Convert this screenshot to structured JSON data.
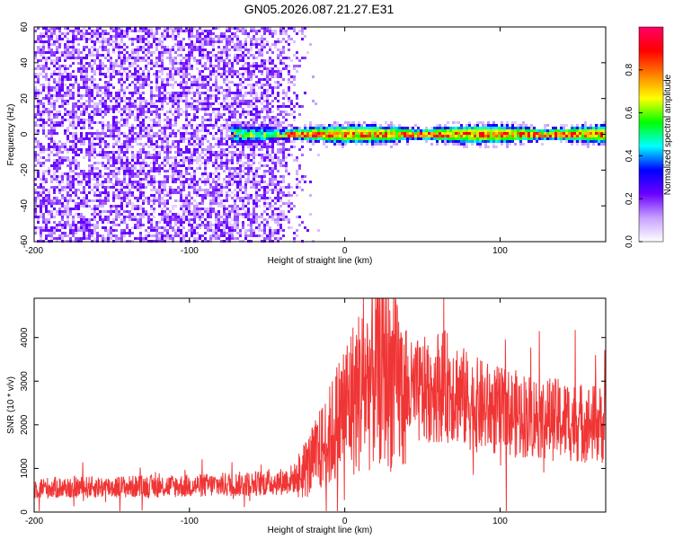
{
  "page": {
    "title": "GN05.2026.087.21.27.E31"
  },
  "chart_data": [
    {
      "type": "heatmap",
      "xlabel": "Height of straight line (km)",
      "ylabel": "Frequency (Hz)",
      "xlim": [
        -200,
        168
      ],
      "ylim": [
        -60,
        60
      ],
      "x_ticks": [
        -200,
        -100,
        0,
        100
      ],
      "y_ticks": [
        -60,
        -40,
        -20,
        0,
        20,
        40,
        60
      ],
      "x_tick_labels": [
        "-200",
        "-100",
        "0",
        "100"
      ],
      "y_tick_labels": [
        "-60",
        "-40",
        "-20",
        "0",
        "20",
        "40",
        "60"
      ],
      "colorbar": {
        "label": "Normalized spectral amplitude",
        "range": [
          0,
          1
        ],
        "ticks": [
          0,
          0.2,
          0.4,
          0.6,
          0.8
        ],
        "tick_labels": [
          "0.0",
          "0.2",
          "0.4",
          "0.6",
          "0.8"
        ],
        "colormap_stops": [
          "#ffffff",
          "#c7a0ff",
          "#6a00ff",
          "#0000ff",
          "#00ffff",
          "#00ff00",
          "#ffff00",
          "#ff8000",
          "#ff0000",
          "#ff0066"
        ]
      },
      "noise_region_x": [
        -200,
        -22
      ],
      "carrier": {
        "freq_hz": 0,
        "start_x": -75,
        "peak_amplitude": 0.95
      }
    },
    {
      "type": "line",
      "xlabel": "Height of straight line (km)",
      "ylabel": "SNR (10 * v/v)",
      "xlim": [
        -200,
        168
      ],
      "ylim": [
        0,
        4900
      ],
      "x_ticks": [
        -200,
        -100,
        0,
        100
      ],
      "y_ticks": [
        0,
        1000,
        2000,
        3000,
        4000
      ],
      "x_tick_labels": [
        "-200",
        "-100",
        "0",
        "100"
      ],
      "y_tick_labels": [
        "0",
        "1000",
        "2000",
        "3000",
        "4000"
      ],
      "series_color": "#f03535",
      "envelope": {
        "x": [
          -200,
          -100,
          -60,
          -40,
          -30,
          -20,
          -10,
          0,
          10,
          20,
          25,
          30,
          40,
          50,
          60,
          70,
          80,
          90,
          100,
          120,
          140,
          168
        ],
        "y": [
          550,
          600,
          650,
          700,
          800,
          1200,
          1700,
          2400,
          2800,
          3200,
          3500,
          3000,
          2700,
          2750,
          2900,
          2850,
          2500,
          2400,
          2300,
          2200,
          2100,
          2000
        ]
      }
    }
  ]
}
